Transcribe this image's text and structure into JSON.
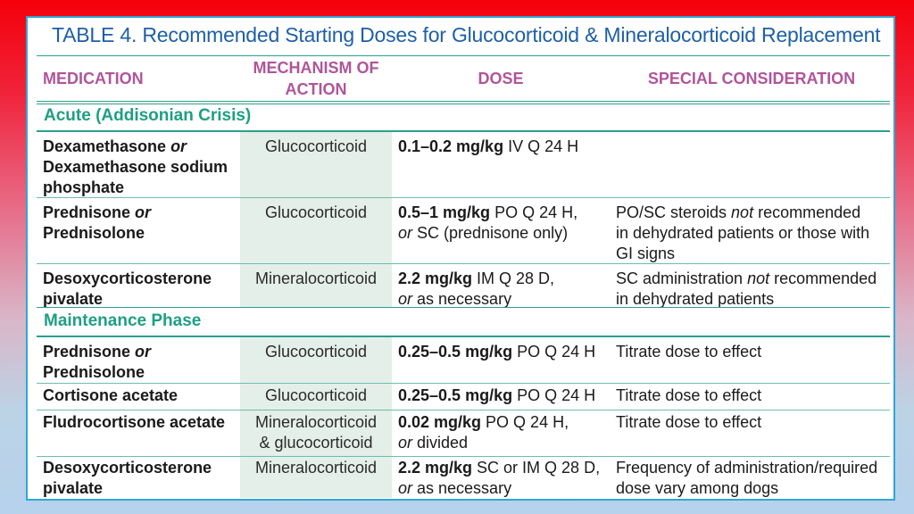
{
  "title": "TABLE 4. Recommended Starting Doses for Glucocorticoid & Mineralocorticoid Replacement",
  "headers": {
    "medication": "MEDICATION",
    "mechanism_line1": "MECHANISM OF",
    "mechanism_line2": "ACTION",
    "dose": "DOSE",
    "special": "SPECIAL CONSIDERATION"
  },
  "sections": {
    "acute": "Acute (Addisonian Crisis)",
    "maintenance": "Maintenance Phase"
  },
  "rows": [
    {
      "med": [
        "Dexamethasone ",
        "or",
        "Dexamethasone sodium",
        "phosphate"
      ],
      "mech": [
        "Glucocorticoid"
      ],
      "dose": [
        "0.1–0.2 mg/kg",
        " IV Q 24 H"
      ],
      "spec": []
    },
    {
      "med": [
        "Prednisone ",
        "or",
        "Prednisolone"
      ],
      "mech": [
        "Glucocorticoid"
      ],
      "dose": [
        "0.5–1 mg/kg",
        " PO Q 24 H,",
        "or",
        " SC (prednisone only)"
      ],
      "spec": [
        "PO/SC steroids ",
        "not",
        " recommended",
        "in dehydrated patients or those with",
        "GI signs"
      ]
    },
    {
      "med": [
        "Desoxycorticosterone",
        "pivalate"
      ],
      "mech": [
        "Mineralocorticoid"
      ],
      "dose": [
        "2.2 mg/kg",
        " IM Q 28 D,",
        "or",
        " as necessary"
      ],
      "spec": [
        "SC administration ",
        "not",
        " recommended",
        "in dehydrated patients"
      ]
    },
    {
      "med": [
        "Prednisone ",
        "or",
        "Prednisolone"
      ],
      "mech": [
        "Glucocorticoid"
      ],
      "dose": [
        "0.25–0.5 mg/kg",
        " PO Q 24 H"
      ],
      "spec": [
        "Titrate dose to effect"
      ]
    },
    {
      "med": [
        "Cortisone acetate"
      ],
      "mech": [
        "Glucocorticoid"
      ],
      "dose": [
        "0.25–0.5 mg/kg",
        " PO Q 24 H"
      ],
      "spec": [
        "Titrate dose to effect"
      ]
    },
    {
      "med": [
        "Fludrocortisone acetate"
      ],
      "mech": [
        "Mineralocorticoid",
        "& glucocorticoid"
      ],
      "dose": [
        "0.02 mg/kg",
        " PO Q 24 H,",
        "or",
        " divided"
      ],
      "spec": [
        "Titrate dose to effect"
      ]
    },
    {
      "med": [
        "Desoxycorticosterone",
        "pivalate"
      ],
      "mech": [
        "Mineralocorticoid"
      ],
      "dose": [
        "2.2 mg/kg",
        " SC or IM Q 28 D,",
        "or",
        " as necessary"
      ],
      "spec": [
        "Frequency of administration/required",
        "dose vary among dogs"
      ]
    }
  ]
}
